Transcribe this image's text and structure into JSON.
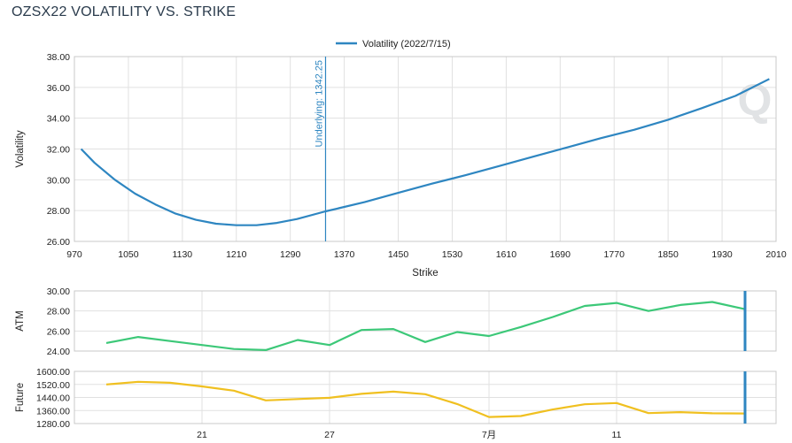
{
  "title": "OZSX22 VOLATILITY VS. STRIKE",
  "colors": {
    "volatility": "#2e86c1",
    "atm": "#3cc878",
    "future": "#f0c020",
    "marker": "#2e86c1",
    "grid": "#e1e1e1"
  },
  "watermark": "Q",
  "chart_data": [
    {
      "type": "line",
      "name": "volatility-vs-strike",
      "legend": "Volatility (2022/7/15)",
      "legend_position": "top-center",
      "xlabel": "Strike",
      "ylabel": "Volatility",
      "xlim": [
        970,
        2010
      ],
      "ylim": [
        26,
        38
      ],
      "x_ticks": [
        "970",
        "1050",
        "1130",
        "1210",
        "1290",
        "1370",
        "1450",
        "1530",
        "1610",
        "1690",
        "1770",
        "1850",
        "1930",
        "2010"
      ],
      "y_ticks": [
        "26.00",
        "28.00",
        "30.00",
        "32.00",
        "34.00",
        "36.00",
        "38.00"
      ],
      "annotation": {
        "label": "Underlying: 1342.25",
        "x": 1342.25
      },
      "series": [
        {
          "name": "Volatility (2022/7/15)",
          "x": [
            980,
            1000,
            1030,
            1060,
            1090,
            1120,
            1150,
            1180,
            1210,
            1240,
            1270,
            1300,
            1342.25,
            1400,
            1450,
            1500,
            1550,
            1600,
            1650,
            1700,
            1750,
            1800,
            1850,
            1900,
            1950,
            2000
          ],
          "y": [
            32.0,
            31.1,
            30.0,
            29.1,
            28.4,
            27.8,
            27.4,
            27.15,
            27.05,
            27.05,
            27.2,
            27.45,
            27.95,
            28.55,
            29.15,
            29.75,
            30.3,
            30.9,
            31.5,
            32.1,
            32.7,
            33.25,
            33.9,
            34.65,
            35.45,
            36.55
          ]
        }
      ]
    },
    {
      "type": "line",
      "name": "atm",
      "ylabel": "ATM",
      "ylim": [
        24,
        30
      ],
      "y_ticks": [
        "24.00",
        "26.00",
        "28.00",
        "30.00"
      ],
      "series": [
        {
          "name": "ATM",
          "values": [
            24.8,
            25.4,
            25.0,
            24.6,
            24.2,
            24.1,
            25.1,
            24.6,
            26.1,
            26.2,
            24.9,
            25.9,
            25.5,
            26.4,
            27.4,
            28.5,
            28.8,
            28.0,
            28.6,
            28.9,
            28.2
          ]
        }
      ]
    },
    {
      "type": "line",
      "name": "future",
      "ylabel": "Future",
      "ylim": [
        1280,
        1600
      ],
      "y_ticks": [
        "1280.00",
        "1360.00",
        "1440.00",
        "1520.00",
        "1600.00"
      ],
      "x_ticks": [
        {
          "label": "21",
          "index": 3
        },
        {
          "label": "27",
          "index": 7
        },
        {
          "label": "7月",
          "index": 12
        },
        {
          "label": "11",
          "index": 16
        }
      ],
      "series": [
        {
          "name": "Future",
          "values": [
            1520,
            1536,
            1530,
            1508,
            1482,
            1422,
            1430,
            1438,
            1462,
            1476,
            1460,
            1400,
            1320,
            1326,
            1366,
            1398,
            1406,
            1344,
            1350,
            1343,
            1342
          ]
        }
      ]
    }
  ]
}
